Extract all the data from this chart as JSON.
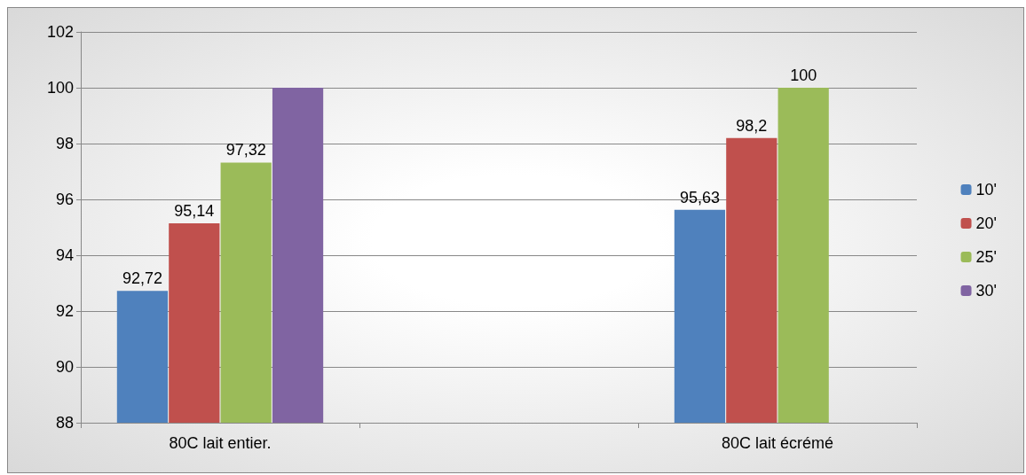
{
  "chart_data": {
    "type": "bar",
    "categories": [
      "80C lait entier.",
      null,
      "80C lait écrémé"
    ],
    "series": [
      {
        "name": "10'",
        "color": "#4f81bd",
        "values": [
          92.72,
          null,
          95.63
        ],
        "value_labels": [
          "92,72",
          null,
          "95,63"
        ]
      },
      {
        "name": "20'",
        "color": "#c0504d",
        "values": [
          95.14,
          null,
          98.2
        ],
        "value_labels": [
          "95,14",
          null,
          "98,2"
        ]
      },
      {
        "name": "25'",
        "color": "#9bbb59",
        "values": [
          97.32,
          null,
          100
        ],
        "value_labels": [
          "97,32",
          null,
          "100"
        ]
      },
      {
        "name": "30'",
        "color": "#8064a2",
        "values": [
          100,
          null,
          null
        ],
        "value_labels": [
          null,
          null,
          null
        ]
      }
    ],
    "ylim": [
      88,
      102
    ],
    "yticks": [
      88,
      90,
      92,
      94,
      96,
      98,
      100,
      102
    ],
    "grid": "y",
    "legend": "right"
  }
}
